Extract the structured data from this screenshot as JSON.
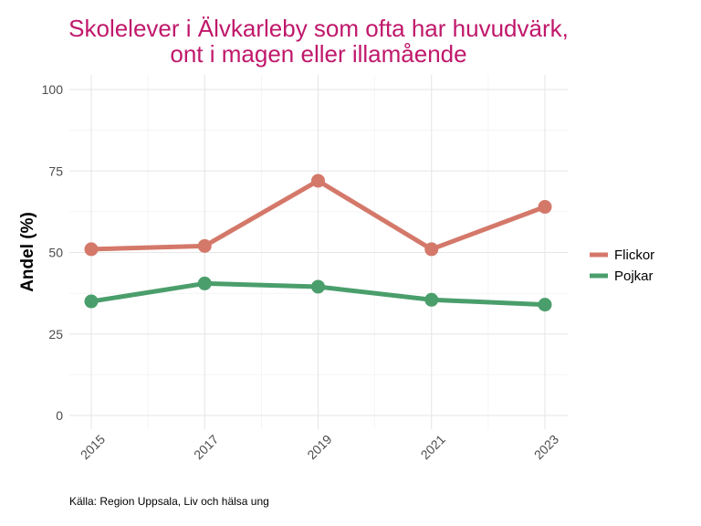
{
  "chart_data": {
    "type": "line",
    "title_lines": [
      "Skolelever i Älvkarleby som ofta har huvudvärk,",
      "ont i magen eller illamående"
    ],
    "xlabel": "",
    "ylabel": "Andel (%)",
    "x": [
      2015,
      2017,
      2019,
      2021,
      2023
    ],
    "x_tick_labels": [
      "2015",
      "2017",
      "2019",
      "2021",
      "2023"
    ],
    "ylim": [
      0,
      100
    ],
    "y_ticks": [
      0,
      25,
      50,
      75,
      100
    ],
    "y_tick_labels": [
      "0",
      "25",
      "50",
      "75",
      "100"
    ],
    "grid": true,
    "legend_position": "right",
    "series": [
      {
        "name": "Flickor",
        "color": "#d4786a",
        "values": [
          51,
          52,
          72,
          51,
          64
        ]
      },
      {
        "name": "Pojkar",
        "color": "#4a9e6b",
        "values": [
          35,
          40.5,
          39.5,
          35.5,
          34
        ]
      }
    ],
    "caption": "Källa: Region Uppsala, Liv och hälsa ung"
  }
}
